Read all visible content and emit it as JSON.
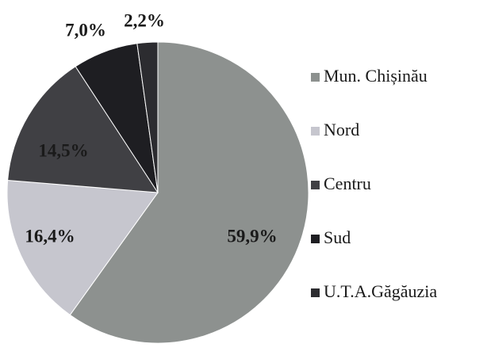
{
  "chart_data": {
    "type": "pie",
    "categories": [
      "Mun. Chișinău",
      "Nord",
      "Centru",
      "Sud",
      "U.T.A.Găgăuzia"
    ],
    "values": [
      59.9,
      16.4,
      14.5,
      7.0,
      2.2
    ],
    "value_labels": [
      "59,9%",
      "16,4%",
      "14,5%",
      "7,0%",
      "2,2%"
    ],
    "colors": [
      "#8d918f",
      "#c6c6ce",
      "#404044",
      "#1e1e22",
      "#2c2c30"
    ],
    "legend": "right"
  }
}
